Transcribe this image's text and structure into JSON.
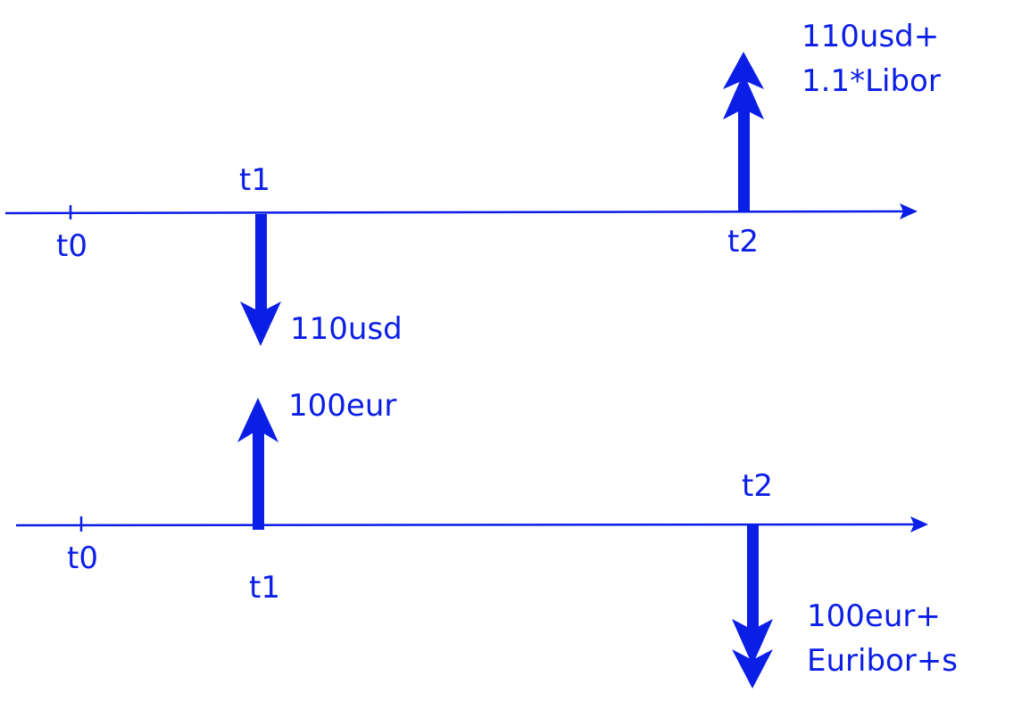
{
  "colors": {
    "ink": "#0b1ee6"
  },
  "top_timeline": {
    "t0_label": "t0",
    "t1_label": "t1",
    "t2_label": "t2",
    "t1_flow_label": "110usd",
    "t2_flow_label_line1": "110usd+",
    "t2_flow_label_line2": "1.1*Libor"
  },
  "bottom_timeline": {
    "t0_label": "t0",
    "t1_label": "t1",
    "t2_label": "t2",
    "t1_flow_label": "100eur",
    "t2_flow_label_line1": "100eur+",
    "t2_flow_label_line2": "Euribor+s"
  }
}
